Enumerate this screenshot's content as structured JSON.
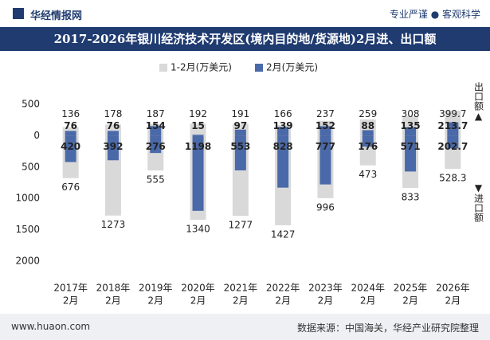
{
  "header": {
    "logo": "华经情报网",
    "slogan": "专业严谨 ● 客观科学"
  },
  "footer": {
    "website": "www.huaon.com",
    "source": "数据来源：中国海关，华经产业研究院整理"
  },
  "chart_data": {
    "type": "diverging-bar",
    "title": "2017-2026年银川经济技术开发区(境内目的地/货源地)2月进、出口额",
    "up_label": "出口额▲",
    "down_label": "▼进口额",
    "categories": [
      [
        "2017年",
        "2月"
      ],
      [
        "2018年",
        "2月"
      ],
      [
        "2019年",
        "2月"
      ],
      [
        "2020年",
        "2月"
      ],
      [
        "2021年",
        "2月"
      ],
      [
        "2022年",
        "2月"
      ],
      [
        "2023年",
        "2月"
      ],
      [
        "2024年",
        "2月"
      ],
      [
        "2025年",
        "2月"
      ],
      [
        "2026年",
        "2月"
      ]
    ],
    "series": [
      {
        "name": "1-2月(万美元)",
        "color": "#d9d9d9",
        "values": [
          136,
          178,
          187,
          192,
          191,
          166,
          237,
          259,
          308,
          399.7
        ],
        "import_values": [
          -676,
          -1273,
          -555,
          -1340,
          -1277,
          -1427,
          -996,
          -473,
          -833,
          -528.3
        ],
        "import_value_labels": [
          "676",
          "1273",
          "555",
          "1340",
          "1277",
          "1427",
          "996",
          "473",
          "833",
          "528.3"
        ]
      },
      {
        "name": "2月(万美元)",
        "color": "#4a69a8",
        "values": [
          76,
          76,
          154,
          15,
          97,
          139,
          152,
          88,
          135,
          213.7
        ],
        "import_values": [
          -420,
          -392,
          -276,
          -1198,
          -553,
          -828,
          -777,
          -176,
          -571,
          -202.7
        ],
        "import_value_labels": [
          "420",
          "392",
          "276",
          "1198",
          "553",
          "828",
          "777",
          "176",
          "571",
          "202.7"
        ]
      }
    ],
    "ylim": [
      -2000,
      500
    ],
    "yticks": [
      {
        "value": 500,
        "label": "500"
      },
      0,
      {
        "value": -500,
        "label": "500"
      },
      {
        "value": -1000,
        "label": "1000"
      },
      {
        "value": -1500,
        "label": "1500"
      },
      {
        "value": -2000,
        "label": "2000"
      }
    ],
    "grid": false,
    "legend": "top"
  }
}
